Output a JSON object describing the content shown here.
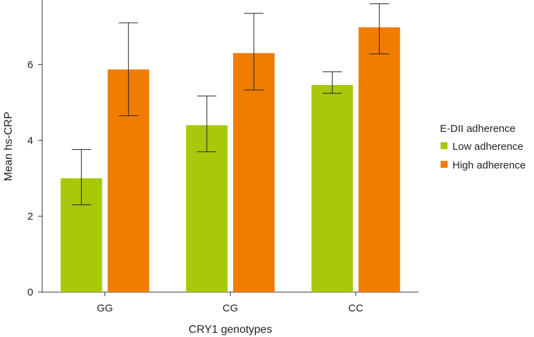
{
  "chart_data": {
    "type": "bar",
    "xlabel": "CRY1 genotypes",
    "ylabel": "Mean hs-CRP",
    "categories": [
      "GG",
      "CG",
      "CC"
    ],
    "ylim": [
      0,
      7.7
    ],
    "yticks": [
      0,
      2,
      4,
      6
    ],
    "grid": false,
    "legend": {
      "title": "E-DII adherence",
      "position": "right"
    },
    "series": [
      {
        "name": "Low adherence",
        "color": "#a8c80a",
        "values": [
          3.0,
          4.4,
          5.46
        ],
        "error_low": [
          2.3,
          3.7,
          5.24
        ],
        "error_high": [
          3.76,
          5.17,
          5.81
        ]
      },
      {
        "name": "High adherence",
        "color": "#f07c00",
        "values": [
          5.87,
          6.3,
          6.98
        ],
        "error_low": [
          4.65,
          5.33,
          6.28
        ],
        "error_high": [
          7.1,
          7.35,
          7.6
        ]
      }
    ]
  }
}
